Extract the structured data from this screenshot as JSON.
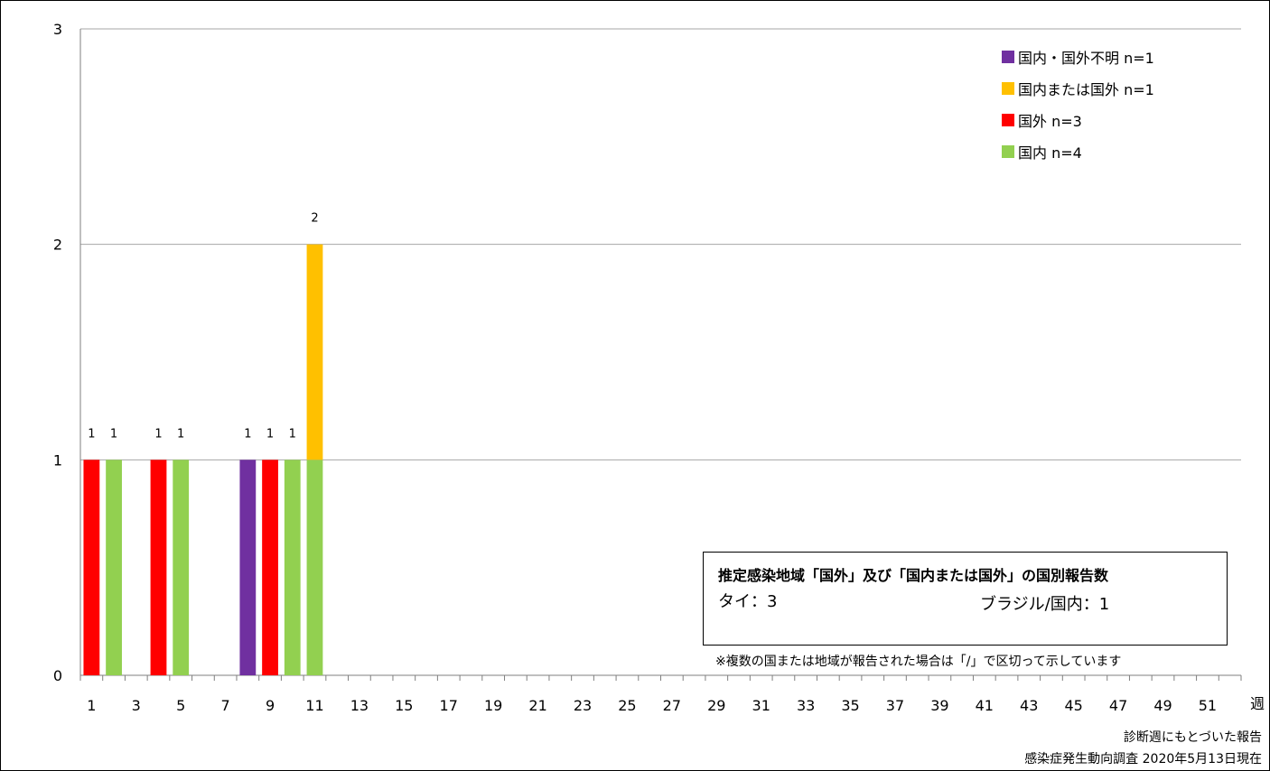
{
  "chart_data": {
    "type": "bar",
    "stacked": true,
    "xlabel": "週",
    "ylim": [
      0,
      3
    ],
    "yticks": [
      0,
      1,
      2,
      3
    ],
    "xlim": [
      1,
      52
    ],
    "x_tick_labels": [
      1,
      3,
      5,
      7,
      9,
      11,
      13,
      15,
      17,
      19,
      21,
      23,
      25,
      27,
      29,
      31,
      33,
      35,
      37,
      39,
      41,
      43,
      45,
      47,
      49,
      51
    ],
    "grid": true,
    "legend_position": "top-right",
    "series": [
      {
        "name": "国内 n=4",
        "color": "#92D050",
        "points": [
          {
            "week": 2,
            "value": 1
          },
          {
            "week": 5,
            "value": 1
          },
          {
            "week": 10,
            "value": 1
          },
          {
            "week": 11,
            "value": 1
          }
        ]
      },
      {
        "name": "国外 n=3",
        "color": "#FF0000",
        "points": [
          {
            "week": 1,
            "value": 1
          },
          {
            "week": 4,
            "value": 1
          },
          {
            "week": 9,
            "value": 1
          }
        ]
      },
      {
        "name": "国内または国外 n=1",
        "color": "#FFC000",
        "points": [
          {
            "week": 11,
            "value": 1
          }
        ]
      },
      {
        "name": "国内・国外不明 n=1",
        "color": "#7030A0",
        "points": [
          {
            "week": 8,
            "value": 1
          }
        ]
      }
    ],
    "totals": [
      {
        "week": 1,
        "total": 1
      },
      {
        "week": 2,
        "total": 1
      },
      {
        "week": 4,
        "total": 1
      },
      {
        "week": 5,
        "total": 1
      },
      {
        "week": 8,
        "total": 1
      },
      {
        "week": 9,
        "total": 1
      },
      {
        "week": 10,
        "total": 1
      },
      {
        "week": 11,
        "total": 2
      }
    ],
    "legend_order": [
      "国内・国外不明 n=1",
      "国内または国外 n=1",
      "国外 n=3",
      "国内 n=4"
    ]
  },
  "infobox": {
    "title": "推定感染地域「国外」及び「国内または国外」の国別報告数",
    "item1": "タイ：3",
    "item2": "ブラジル/国内：1"
  },
  "footnote": "※複数の国または地域が報告された場合は「/」で区切って示しています",
  "source_line1": "診断週にもとづいた報告",
  "source_line2": "感染症発生動向調査 2020年5月13日現在"
}
